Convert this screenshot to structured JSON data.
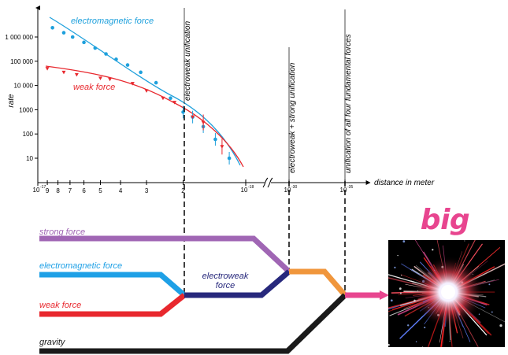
{
  "chart_data": {
    "type": "scatter",
    "y_axis": {
      "label": "rate",
      "scale": "log",
      "ticks": [
        "1 000 000",
        "100 000",
        "10 000",
        "1000",
        "100",
        "10"
      ]
    },
    "x_axis": {
      "label": "distance in meter",
      "scale": "log",
      "reversed": true,
      "ticks_major": [
        "10",
        "10",
        "10",
        "10"
      ],
      "ticks_major_exp": [
        "-17",
        "-18",
        "-30",
        "-35"
      ],
      "ticks_minor": [
        "9",
        "8",
        "7",
        "6",
        "5",
        "4",
        "3",
        "2"
      ]
    },
    "series": [
      {
        "name": "electromagnetic force",
        "color": "#1ea0dc",
        "points": [
          {
            "x": 8.5,
            "y": 2400000
          },
          {
            "x": 7.5,
            "y": 1500000
          },
          {
            "x": 6.8,
            "y": 1000000
          },
          {
            "x": 6.0,
            "y": 600000
          },
          {
            "x": 5.3,
            "y": 350000
          },
          {
            "x": 4.7,
            "y": 200000
          },
          {
            "x": 4.2,
            "y": 120000
          },
          {
            "x": 3.7,
            "y": 70000
          },
          {
            "x": 3.2,
            "y": 35000
          },
          {
            "x": 2.7,
            "y": 13000
          },
          {
            "x": 2.3,
            "y": 3000
          },
          {
            "x": 2.0,
            "y": 800
          },
          {
            "x": 1.8,
            "y": 500
          },
          {
            "x": 1.6,
            "y": 200
          },
          {
            "x": 1.4,
            "y": 60
          },
          {
            "x": 1.2,
            "y": 10
          }
        ]
      },
      {
        "name": "weak force",
        "color": "#e8282e",
        "points": [
          {
            "x": 9.0,
            "y": 50000
          },
          {
            "x": 7.5,
            "y": 35000
          },
          {
            "x": 6.5,
            "y": 28000
          },
          {
            "x": 5.0,
            "y": 20000
          },
          {
            "x": 4.5,
            "y": 18000
          },
          {
            "x": 3.5,
            "y": 12000
          },
          {
            "x": 3.0,
            "y": 6000
          },
          {
            "x": 2.5,
            "y": 3000
          },
          {
            "x": 2.2,
            "y": 2000
          },
          {
            "x": 1.8,
            "y": 500
          },
          {
            "x": 1.6,
            "y": 300
          },
          {
            "x": 1.3,
            "y": 30
          }
        ]
      }
    ],
    "unification_lines": [
      {
        "label": "electroweak unification"
      },
      {
        "label": "electroweak + strong unification"
      },
      {
        "label": "unification of all four fundamental forces"
      }
    ]
  },
  "forces": {
    "strong": {
      "label": "strong force",
      "color": "#a066b4"
    },
    "electromagnetic": {
      "label": "electromagnetic force",
      "color": "#1ea0e6"
    },
    "weak": {
      "label": "weak force",
      "color": "#e8282e"
    },
    "gravity": {
      "label": "gravity",
      "color": "#1a1a1a"
    },
    "electroweak_line1": "electroweak",
    "electroweak_line2": "force",
    "electroweak_color": "#27287c",
    "grand_color": "#f0963c",
    "final_color": "#e8458f"
  },
  "big_bang": {
    "title": "big bang"
  }
}
